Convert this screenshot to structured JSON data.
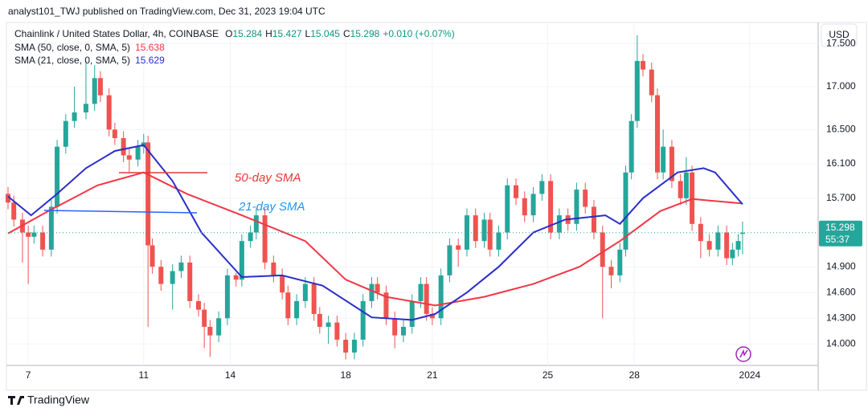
{
  "header": {
    "publisher": "analyst101_TWJ published on TradingView.com, Dec 31, 2023 19:04 UTC"
  },
  "footer": {
    "brand": "TradingView"
  },
  "currency": "USD",
  "countdown": "55:37",
  "chart_data": {
    "type": "candlestick",
    "title": "Chainlink / United States Dollar, 4h, COINBASE",
    "legend_letters": [
      "O",
      "H",
      "L",
      "C"
    ],
    "change_label": "+0.010 (+0.07%)",
    "up_color": "#26a69a",
    "down_color": "#ef5350",
    "x": [
      6.3,
      6.5,
      6.8,
      7.0,
      7.2,
      7.5,
      7.8,
      8.0,
      8.3,
      8.6,
      9.0,
      9.3,
      9.5,
      9.8,
      10.0,
      10.3,
      10.5,
      10.8,
      11.0,
      11.15,
      11.3,
      11.6,
      12.0,
      12.3,
      12.6,
      12.9,
      13.1,
      13.3,
      13.6,
      13.9,
      14.2,
      14.4,
      14.7,
      14.9,
      15.2,
      15.5,
      15.8,
      16.0,
      16.3,
      16.6,
      16.9,
      17.1,
      17.4,
      17.7,
      18.0,
      18.3,
      18.6,
      18.9,
      19.1,
      19.4,
      19.7,
      20.0,
      20.3,
      20.6,
      20.8,
      21.0,
      21.3,
      21.6,
      21.9,
      22.2,
      22.5,
      22.8,
      23.0,
      23.3,
      23.6,
      23.9,
      24.2,
      24.5,
      24.8,
      25.1,
      25.4,
      25.7,
      26.0,
      26.3,
      26.6,
      26.9,
      27.2,
      27.5,
      27.7,
      27.9,
      28.1,
      28.3,
      28.6,
      28.8,
      29.0,
      29.3,
      29.6,
      29.8,
      30.0,
      30.3,
      30.6,
      30.9,
      31.2,
      31.4,
      31.6,
      31.75
    ],
    "open": [
      15.75,
      15.65,
      15.45,
      15.3,
      15.25,
      15.3,
      15.1,
      15.6,
      16.3,
      16.6,
      16.7,
      16.8,
      17.1,
      16.9,
      16.5,
      16.4,
      16.2,
      16.15,
      16.3,
      16.35,
      15.15,
      14.9,
      14.7,
      14.85,
      14.95,
      14.5,
      14.4,
      14.2,
      14.1,
      14.3,
      14.8,
      14.75,
      15.2,
      15.3,
      15.5,
      14.95,
      14.8,
      14.6,
      14.3,
      14.5,
      14.7,
      14.35,
      14.2,
      14.25,
      14.05,
      13.9,
      14.05,
      14.5,
      14.7,
      14.6,
      14.3,
      14.1,
      14.2,
      14.5,
      14.7,
      14.35,
      14.3,
      14.8,
      15.15,
      15.1,
      15.5,
      15.2,
      15.45,
      15.1,
      15.3,
      15.85,
      15.7,
      15.5,
      15.75,
      15.9,
      15.3,
      15.5,
      15.4,
      15.8,
      15.6,
      15.3,
      14.9,
      14.8,
      15.1,
      16.0,
      16.6,
      17.3,
      17.2,
      16.9,
      16.0,
      16.3,
      15.9,
      15.7,
      16.0,
      15.4,
      15.2,
      15.1,
      15.3,
      15.0,
      15.1,
      15.284
    ],
    "high": [
      15.83,
      15.73,
      15.53,
      15.38,
      15.38,
      15.38,
      15.68,
      16.38,
      16.68,
      17.0,
      17.3,
      17.25,
      17.18,
      16.98,
      16.58,
      16.48,
      16.28,
      16.38,
      16.45,
      16.43,
      15.23,
      14.98,
      14.93,
      15.03,
      15.03,
      14.58,
      14.48,
      14.28,
      14.38,
      14.88,
      14.83,
      15.28,
      15.38,
      15.58,
      15.58,
      15.03,
      14.88,
      14.68,
      14.58,
      14.78,
      14.78,
      14.43,
      14.33,
      14.33,
      14.13,
      14.13,
      14.58,
      14.78,
      14.78,
      14.68,
      14.38,
      14.28,
      14.58,
      14.78,
      14.78,
      14.43,
      14.88,
      15.23,
      15.23,
      15.58,
      15.58,
      15.53,
      15.53,
      15.38,
      15.93,
      15.93,
      15.78,
      15.83,
      15.98,
      15.98,
      15.58,
      15.58,
      15.88,
      15.88,
      15.68,
      15.38,
      14.98,
      15.18,
      16.08,
      16.68,
      17.6,
      17.38,
      17.28,
      16.98,
      16.5,
      16.38,
      15.98,
      16.18,
      16.08,
      15.48,
      15.28,
      15.38,
      15.38,
      15.18,
      15.28,
      15.427
    ],
    "low": [
      15.57,
      15.37,
      14.95,
      14.7,
      15.17,
      15.02,
      15.02,
      15.52,
      16.22,
      16.52,
      16.62,
      16.72,
      16.82,
      16.42,
      16.32,
      16.12,
      16.0,
      16.07,
      16.22,
      14.2,
      14.82,
      14.62,
      14.4,
      14.77,
      14.42,
      14.32,
      13.95,
      13.85,
      14.02,
      14.22,
      14.67,
      14.67,
      15.12,
      15.22,
      14.87,
      14.72,
      14.52,
      14.22,
      14.22,
      14.42,
      14.27,
      14.12,
      14.0,
      13.97,
      13.82,
      13.82,
      13.97,
      14.42,
      14.52,
      14.22,
      13.95,
      14.02,
      14.12,
      14.42,
      14.27,
      14.22,
      14.22,
      14.72,
      14.9,
      15.02,
      15.12,
      15.12,
      15.02,
      15.02,
      15.22,
      15.62,
      15.42,
      15.42,
      15.67,
      15.22,
      15.22,
      15.32,
      15.32,
      15.52,
      15.22,
      14.3,
      14.65,
      14.72,
      15.02,
      15.92,
      16.52,
      17.12,
      16.82,
      15.92,
      15.92,
      15.82,
      15.62,
      15.62,
      15.32,
      15.0,
      15.02,
      15.02,
      14.92,
      14.92,
      15.02,
      15.045
    ],
    "close": [
      15.65,
      15.45,
      15.3,
      15.25,
      15.3,
      15.1,
      15.6,
      16.3,
      16.6,
      16.7,
      16.8,
      17.1,
      16.9,
      16.5,
      16.4,
      16.2,
      16.15,
      16.3,
      16.35,
      15.15,
      14.9,
      14.7,
      14.85,
      14.95,
      14.5,
      14.4,
      14.2,
      14.1,
      14.3,
      14.8,
      14.75,
      15.2,
      15.3,
      15.5,
      14.95,
      14.8,
      14.6,
      14.3,
      14.5,
      14.7,
      14.35,
      14.2,
      14.25,
      14.05,
      13.9,
      14.05,
      14.5,
      14.7,
      14.6,
      14.3,
      14.1,
      14.2,
      14.5,
      14.7,
      14.35,
      14.3,
      14.8,
      15.15,
      15.1,
      15.5,
      15.2,
      15.45,
      15.1,
      15.3,
      15.85,
      15.7,
      15.5,
      15.75,
      15.9,
      15.3,
      15.5,
      15.4,
      15.8,
      15.6,
      15.3,
      14.9,
      14.8,
      15.1,
      16.0,
      16.6,
      17.3,
      17.2,
      16.9,
      16.0,
      16.3,
      15.9,
      15.7,
      16.0,
      15.4,
      15.2,
      15.1,
      15.3,
      15.0,
      15.1,
      15.2,
      15.298
    ],
    "series": [
      {
        "name": "SMA (50, close, 0, SMA, 5)",
        "color": "#f23645",
        "last": 15.638,
        "x": [
          6.3,
          7.7,
          9.4,
          11.0,
          12.5,
          14.4,
          16.6,
          18.0,
          19.4,
          21.1,
          22.8,
          24.5,
          26.1,
          27.5,
          28.9,
          30.0,
          31.75
        ],
        "values": [
          15.29,
          15.55,
          15.85,
          16.0,
          15.75,
          15.5,
          15.2,
          14.75,
          14.55,
          14.45,
          14.55,
          14.7,
          14.9,
          15.2,
          15.55,
          15.69,
          15.638
        ]
      },
      {
        "name": "SMA (21, close, 0, SMA, 5)",
        "color": "#2a2ec9",
        "last": 15.629,
        "x": [
          6.3,
          7.1,
          8.0,
          9.0,
          10.0,
          11.0,
          12.0,
          13.0,
          14.4,
          15.8,
          17.2,
          18.9,
          20.3,
          21.1,
          22.2,
          23.3,
          24.5,
          25.6,
          27.0,
          27.5,
          28.3,
          29.5,
          30.4,
          30.8,
          31.75
        ],
        "values": [
          15.72,
          15.5,
          15.75,
          16.05,
          16.25,
          16.32,
          15.9,
          15.3,
          14.78,
          14.8,
          14.68,
          14.31,
          14.28,
          14.35,
          14.6,
          14.9,
          15.3,
          15.45,
          15.5,
          15.4,
          15.7,
          16.0,
          16.05,
          16.0,
          15.629
        ]
      }
    ],
    "annotations": [
      "50-day SMA",
      "21-day SMA"
    ],
    "xlim": [
      6.3,
      34.37
    ],
    "ylim": [
      13.75,
      17.73
    ],
    "xticks": [
      7,
      11,
      14,
      18,
      21,
      25,
      28,
      {
        "value": 32,
        "label": "2024"
      }
    ],
    "yticks": [
      {
        "value": 17.5,
        "label": "17.500"
      },
      {
        "value": 17,
        "label": "17.000"
      },
      {
        "value": 16.5,
        "label": "16.500"
      },
      {
        "value": 16.1,
        "label": "16.100"
      },
      {
        "value": 15.7,
        "label": "15.700"
      },
      {
        "value": 14.9,
        "label": "14.900"
      },
      {
        "value": 14.6,
        "label": "14.600"
      },
      {
        "value": 14.3,
        "label": "14.300"
      },
      {
        "value": 14,
        "label": "14.000"
      }
    ],
    "grid": true
  }
}
